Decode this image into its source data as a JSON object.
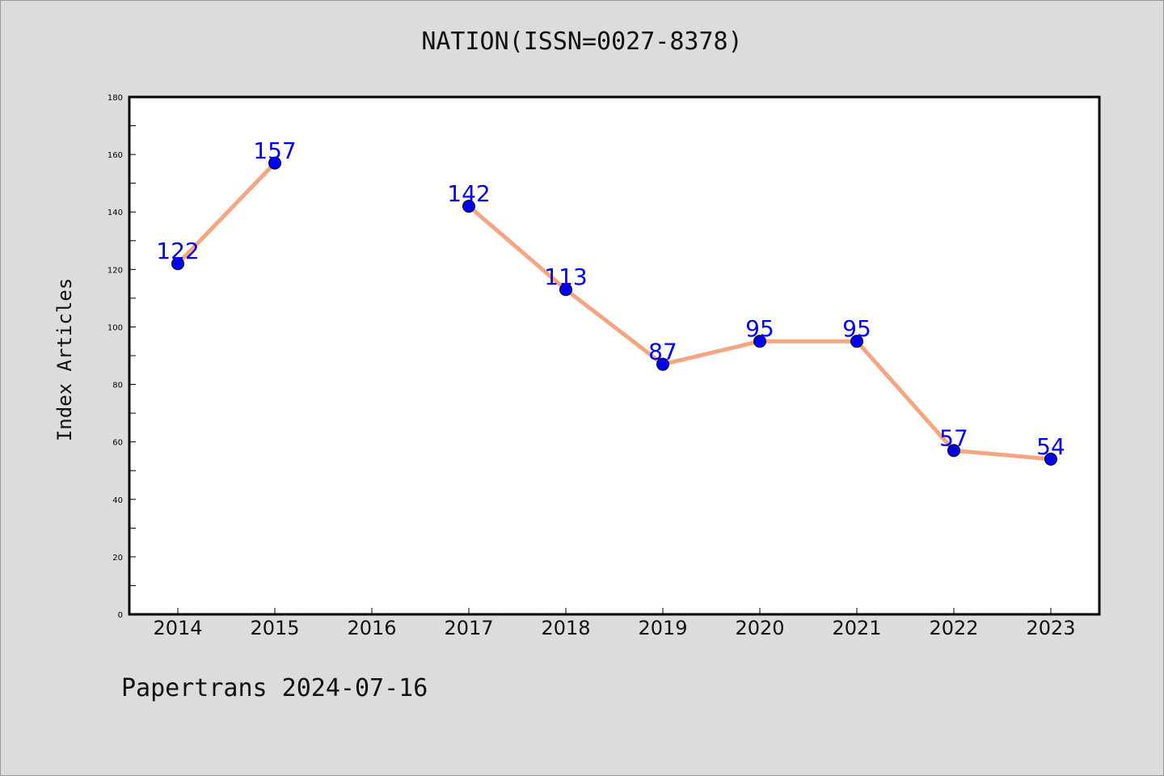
{
  "chart_data": {
    "type": "line",
    "title": "NATION(ISSN=0027-8378)",
    "ylabel": "Index Articles",
    "xlabel": "",
    "categories": [
      "2014",
      "2015",
      "2016",
      "2017",
      "2018",
      "2019",
      "2020",
      "2021",
      "2022",
      "2023"
    ],
    "series": [
      {
        "values": [
          122,
          157,
          null,
          142,
          113,
          87,
          95,
          95,
          57,
          54
        ],
        "line_color": "#f4a582",
        "marker_color": "#0000ee",
        "label_color": "#0000ee"
      }
    ],
    "ylim": [
      0,
      180
    ],
    "yticks": [
      0,
      20,
      40,
      60,
      80,
      100,
      120,
      140,
      160,
      180
    ],
    "grid": false,
    "legend": "none"
  },
  "footer": "Papertrans 2024-07-16"
}
